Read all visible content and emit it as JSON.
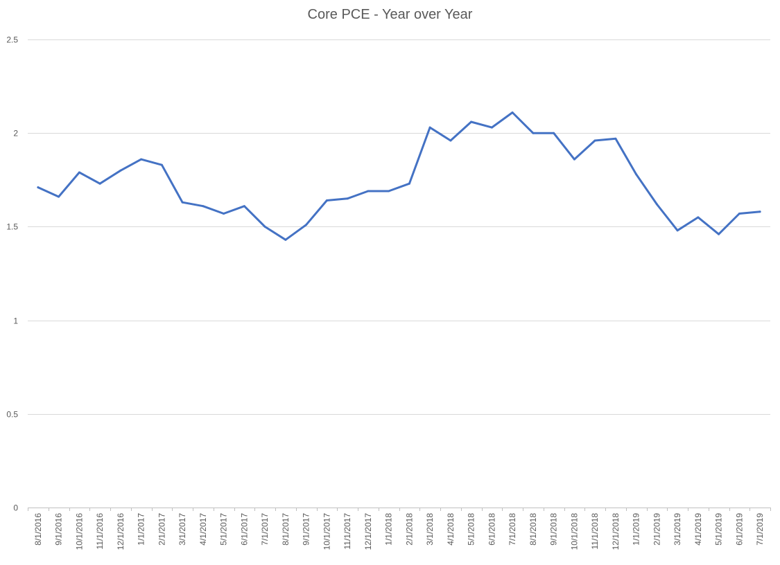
{
  "chart_data": {
    "type": "line",
    "title": "Core PCE - Year over Year",
    "xlabel": "",
    "ylabel": "",
    "ylim": [
      0,
      2.5
    ],
    "yticks": [
      0,
      0.5,
      1,
      1.5,
      2,
      2.5
    ],
    "grid": true,
    "legend": "none",
    "categories": [
      "8/1/2016",
      "9/1/2016",
      "10/1/2016",
      "11/1/2016",
      "12/1/2016",
      "1/1/2017",
      "2/1/2017",
      "3/1/2017",
      "4/1/2017",
      "5/1/2017",
      "6/1/2017",
      "7/1/2017",
      "8/1/2017",
      "9/1/2017",
      "10/1/2017",
      "11/1/2017",
      "12/1/2017",
      "1/1/2018",
      "2/1/2018",
      "3/1/2018",
      "4/1/2018",
      "5/1/2018",
      "6/1/2018",
      "7/1/2018",
      "8/1/2018",
      "9/1/2018",
      "10/1/2018",
      "11/1/2018",
      "12/1/2018",
      "1/1/2019",
      "2/1/2019",
      "3/1/2019",
      "4/1/2019",
      "5/1/2019",
      "6/1/2019",
      "7/1/2019"
    ],
    "series": [
      {
        "color": "#4472c4",
        "values": [
          1.71,
          1.66,
          1.79,
          1.73,
          1.8,
          1.86,
          1.83,
          1.63,
          1.61,
          1.57,
          1.61,
          1.5,
          1.43,
          1.51,
          1.64,
          1.65,
          1.69,
          1.69,
          1.73,
          2.03,
          1.96,
          2.06,
          2.03,
          2.11,
          2.0,
          2.0,
          1.86,
          1.96,
          1.97,
          1.78,
          1.62,
          1.48,
          1.55,
          1.46,
          1.57,
          1.58
        ]
      }
    ]
  }
}
